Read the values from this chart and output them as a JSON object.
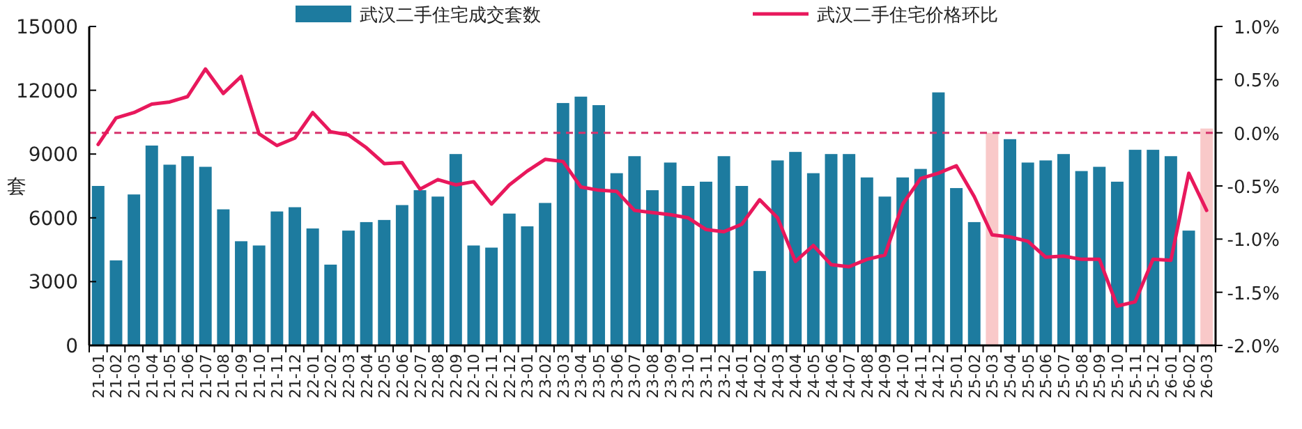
{
  "chart_data": {
    "type": "bar",
    "ylabel": "套",
    "categories": [
      "21-01",
      "21-02",
      "21-03",
      "21-04",
      "21-05",
      "21-06",
      "21-07",
      "21-08",
      "21-09",
      "21-10",
      "21-11",
      "21-12",
      "22-01",
      "22-02",
      "22-03",
      "22-04",
      "22-05",
      "22-06",
      "22-07",
      "22-08",
      "22-09",
      "22-10",
      "22-11",
      "22-12",
      "23-01",
      "23-02",
      "23-03",
      "23-04",
      "23-05",
      "23-06",
      "23-07",
      "23-08",
      "23-09",
      "23-10",
      "23-11",
      "23-12",
      "24-01",
      "24-02",
      "24-03",
      "24-04",
      "24-05",
      "24-06",
      "24-07",
      "24-08",
      "24-09",
      "24-10",
      "24-11",
      "24-12",
      "25-01",
      "25-02",
      "25-03",
      "25-04",
      "25-05",
      "25-06",
      "25-07",
      "25-08",
      "25-09",
      "25-10",
      "25-11",
      "25-12",
      "26-01",
      "26-02",
      "26-03"
    ],
    "series": [
      {
        "name": "武汉二手住宅成交套数",
        "color": "#1d7b9f",
        "colors": [
          "#1d7b9f",
          "#1d7b9f",
          "#1d7b9f",
          "#1d7b9f",
          "#1d7b9f",
          "#1d7b9f",
          "#1d7b9f",
          "#1d7b9f",
          "#1d7b9f",
          "#1d7b9f",
          "#1d7b9f",
          "#1d7b9f",
          "#1d7b9f",
          "#1d7b9f",
          "#1d7b9f",
          "#1d7b9f",
          "#1d7b9f",
          "#1d7b9f",
          "#1d7b9f",
          "#1d7b9f",
          "#1d7b9f",
          "#1d7b9f",
          "#1d7b9f",
          "#1d7b9f",
          "#1d7b9f",
          "#1d7b9f",
          "#1d7b9f",
          "#1d7b9f",
          "#1d7b9f",
          "#1d7b9f",
          "#1d7b9f",
          "#1d7b9f",
          "#1d7b9f",
          "#1d7b9f",
          "#1d7b9f",
          "#1d7b9f",
          "#1d7b9f",
          "#1d7b9f",
          "#1d7b9f",
          "#1d7b9f",
          "#1d7b9f",
          "#1d7b9f",
          "#1d7b9f",
          "#1d7b9f",
          "#1d7b9f",
          "#1d7b9f",
          "#1d7b9f",
          "#1d7b9f",
          "#1d7b9f",
          "#1d7b9f",
          "#f9c9c9",
          "#1d7b9f",
          "#1d7b9f",
          "#1d7b9f",
          "#1d7b9f",
          "#1d7b9f",
          "#1d7b9f",
          "#1d7b9f",
          "#1d7b9f",
          "#1d7b9f",
          "#1d7b9f",
          "#1d7b9f",
          "#f9c9c9"
        ],
        "values": [
          7500,
          4000,
          7100,
          9400,
          8500,
          8900,
          8400,
          6400,
          4900,
          4700,
          6300,
          6500,
          5500,
          3800,
          5400,
          5800,
          5900,
          6600,
          7300,
          7000,
          9000,
          4700,
          4600,
          6200,
          5600,
          6700,
          11400,
          11700,
          11300,
          8100,
          8900,
          7300,
          8600,
          7500,
          7700,
          8900,
          7500,
          3500,
          8700,
          9100,
          8100,
          9000,
          9000,
          7900,
          7000,
          7900,
          8300,
          11900,
          7400,
          5800,
          10000,
          9700,
          8600,
          8700,
          9000,
          8200,
          8400,
          7700,
          9200,
          9200,
          8900,
          5400,
          10200
        ]
      },
      {
        "name": "武汉二手住宅价格环比",
        "type": "line",
        "axis": "y2",
        "color": "#e8185c",
        "values": [
          -0.11,
          0.14,
          0.19,
          0.27,
          0.29,
          0.34,
          0.6,
          0.37,
          0.53,
          -0.01,
          -0.12,
          -0.05,
          0.19,
          0.01,
          -0.02,
          -0.14,
          -0.29,
          -0.28,
          -0.53,
          -0.44,
          -0.49,
          -0.46,
          -0.67,
          -0.49,
          -0.36,
          -0.25,
          -0.27,
          -0.51,
          -0.54,
          -0.55,
          -0.73,
          -0.75,
          -0.77,
          -0.8,
          -0.91,
          -0.93,
          -0.86,
          -0.63,
          -0.8,
          -1.21,
          -1.06,
          -1.24,
          -1.26,
          -1.19,
          -1.15,
          -0.67,
          -0.43,
          -0.38,
          -0.31,
          -0.6,
          -0.96,
          -0.98,
          -1.02,
          -1.17,
          -1.16,
          -1.19,
          -1.19,
          -1.63,
          -1.59,
          -1.19,
          -1.2,
          -0.38,
          -0.73
        ]
      }
    ],
    "ylim": [
      0,
      15000
    ],
    "yticks": [
      0,
      3000,
      6000,
      9000,
      12000,
      15000
    ],
    "y2lim": [
      -2,
      1
    ],
    "y2ticks": [
      {
        "value": 1,
        "label": "1.0%"
      },
      {
        "value": 0.5,
        "label": "0.5%"
      },
      {
        "value": 0,
        "label": "0.0%"
      },
      {
        "value": -0.5,
        "label": "-0.5%"
      },
      {
        "value": -1,
        "label": "-1.0%"
      },
      {
        "value": -1.5,
        "label": "-1.5%"
      },
      {
        "value": -2,
        "label": "-2.0%"
      }
    ],
    "ref_lines": [
      {
        "axis": "y2",
        "value": 0,
        "color": "#d6336c",
        "line_style": "dashed"
      }
    ],
    "legend": "top",
    "grid": false
  }
}
